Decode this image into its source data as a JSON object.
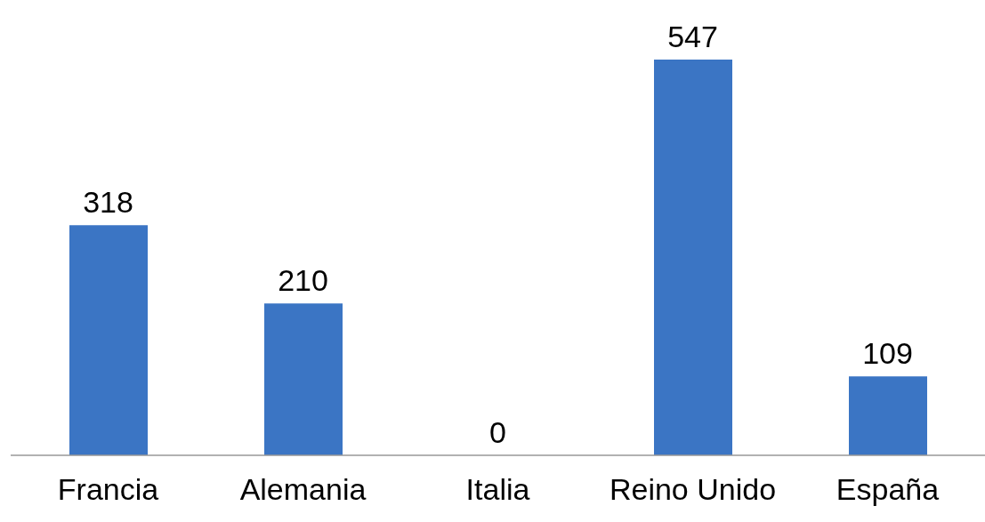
{
  "chart_data": {
    "type": "bar",
    "categories": [
      "Francia",
      "Alemania",
      "Italia",
      "Reino Unido",
      "España"
    ],
    "values": [
      318,
      210,
      0,
      547,
      109
    ],
    "color": "#3b75c4",
    "data_labels": true,
    "grid": false
  }
}
